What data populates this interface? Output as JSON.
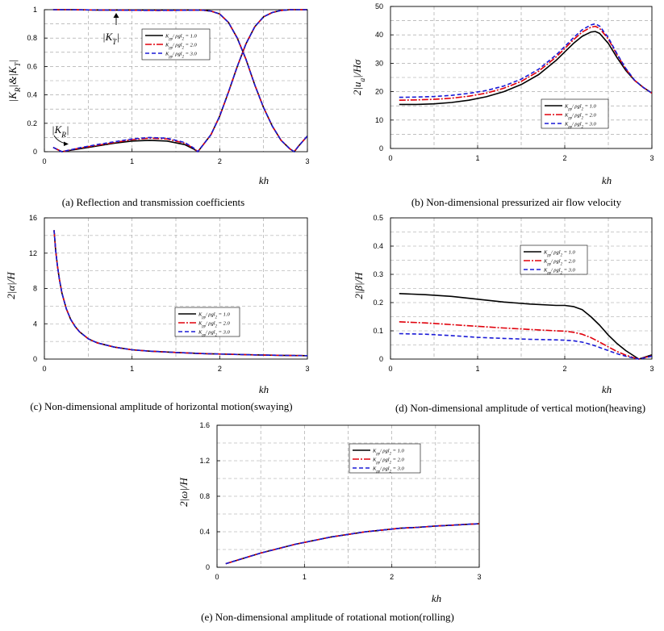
{
  "series_names": [
    "K_pp/ ρgl_2 = 1.0",
    "K_pp/ ρgl_2 = 2.0",
    "K_pp/ ρgl_2 = 3.0"
  ],
  "series_colors": [
    "#000000",
    "#e0000b",
    "#1a1ad6"
  ],
  "chart_data": [
    {
      "id": "a",
      "type": "line",
      "caption": "(a)  Reflection  and  transmission  coefficients",
      "xlabel": "kh",
      "ylabel": "|K_R|&|K_T|",
      "xlim": [
        0,
        3
      ],
      "ylim": [
        0,
        1
      ],
      "xticks": [
        0,
        1,
        2,
        3
      ],
      "yticks": [
        0,
        0.2,
        0.4,
        0.6,
        0.8,
        1
      ],
      "ytick_labels": [
        "0",
        "0.2",
        "0.4",
        "0.6",
        "0.8",
        "1"
      ],
      "annotations": [
        "|K_T|",
        "|K_R|"
      ],
      "legend_labels": [
        "K_pp/ ρgl_2 = 1.0",
        "K_pp/ ρgl_2 = 2.0",
        "K_pp/ ρgl_2 = 3.0"
      ],
      "series": [
        {
          "name": "K_R, K_pp/ρgl_2 = 1.0",
          "x": [
            0.1,
            0.2,
            0.4,
            0.6,
            0.8,
            1.0,
            1.2,
            1.4,
            1.6,
            1.7,
            1.75,
            1.8,
            1.9,
            2.0,
            2.1,
            2.2,
            2.3,
            2.4,
            2.5,
            2.6,
            2.7,
            2.8,
            2.9,
            3.0
          ],
          "y": [
            0.03,
            0.0,
            0.02,
            0.04,
            0.06,
            0.075,
            0.08,
            0.075,
            0.05,
            0.02,
            0.0,
            0.04,
            0.12,
            0.25,
            0.42,
            0.6,
            0.76,
            0.88,
            0.95,
            0.98,
            0.995,
            1.0,
            1.0,
            1.0
          ]
        },
        {
          "name": "K_R, K_pp/ρgl_2 = 2.0",
          "x": [
            0.1,
            0.2,
            0.4,
            0.6,
            0.8,
            1.0,
            1.2,
            1.4,
            1.6,
            1.7,
            1.75,
            1.8,
            1.9,
            2.0,
            2.1,
            2.2,
            2.3,
            2.4,
            2.5,
            2.6,
            2.7,
            2.8,
            2.9,
            3.0
          ],
          "y": [
            0.03,
            0.0,
            0.025,
            0.045,
            0.065,
            0.085,
            0.095,
            0.09,
            0.06,
            0.025,
            0.0,
            0.04,
            0.12,
            0.25,
            0.42,
            0.6,
            0.76,
            0.88,
            0.95,
            0.98,
            0.995,
            1.0,
            1.0,
            1.0
          ]
        },
        {
          "name": "K_R, K_pp/ρgl_2 = 3.0",
          "x": [
            0.1,
            0.2,
            0.4,
            0.6,
            0.8,
            1.0,
            1.2,
            1.4,
            1.6,
            1.7,
            1.75,
            1.8,
            1.9,
            2.0,
            2.1,
            2.2,
            2.3,
            2.4,
            2.5,
            2.6,
            2.7,
            2.8,
            2.9,
            3.0
          ],
          "y": [
            0.03,
            0.0,
            0.027,
            0.05,
            0.07,
            0.09,
            0.1,
            0.095,
            0.065,
            0.027,
            0.0,
            0.04,
            0.12,
            0.25,
            0.42,
            0.6,
            0.76,
            0.88,
            0.95,
            0.98,
            0.995,
            1.0,
            1.0,
            1.0
          ]
        },
        {
          "name": "K_T, K_pp/ρgl_2 = 1.0",
          "x": [
            0.1,
            0.3,
            0.6,
            1.0,
            1.3,
            1.6,
            1.8,
            1.9,
            2.0,
            2.1,
            2.2,
            2.3,
            2.4,
            2.5,
            2.6,
            2.7,
            2.8,
            2.85,
            2.9,
            3.0
          ],
          "y": [
            1.0,
            1.0,
            0.998,
            0.997,
            0.997,
            0.998,
            0.997,
            0.99,
            0.97,
            0.91,
            0.8,
            0.65,
            0.47,
            0.31,
            0.18,
            0.08,
            0.02,
            0.0,
            0.04,
            0.11
          ]
        },
        {
          "name": "K_T, K_pp/ρgl_2 = 2.0",
          "x": [
            0.1,
            0.3,
            0.6,
            1.0,
            1.3,
            1.6,
            1.8,
            1.9,
            2.0,
            2.1,
            2.2,
            2.3,
            2.4,
            2.5,
            2.6,
            2.7,
            2.8,
            2.85,
            2.9,
            3.0
          ],
          "y": [
            1.0,
            1.0,
            0.998,
            0.996,
            0.995,
            0.996,
            0.997,
            0.99,
            0.97,
            0.91,
            0.8,
            0.65,
            0.47,
            0.31,
            0.18,
            0.08,
            0.02,
            0.0,
            0.04,
            0.11
          ]
        },
        {
          "name": "K_T, K_pp/ρgl_2 = 3.0",
          "x": [
            0.1,
            0.3,
            0.6,
            1.0,
            1.3,
            1.6,
            1.8,
            1.9,
            2.0,
            2.1,
            2.2,
            2.3,
            2.4,
            2.5,
            2.6,
            2.7,
            2.8,
            2.85,
            2.9,
            3.0
          ],
          "y": [
            1.0,
            1.0,
            0.998,
            0.996,
            0.995,
            0.996,
            0.997,
            0.99,
            0.97,
            0.91,
            0.8,
            0.65,
            0.47,
            0.31,
            0.18,
            0.08,
            0.02,
            0.0,
            0.04,
            0.11
          ]
        }
      ]
    },
    {
      "id": "b",
      "type": "line",
      "caption": "(b)  Non-dimensional  pressurized  air  flow  velocity",
      "xlabel": "kh",
      "ylabel": "2|u_a|/Hσ",
      "xlim": [
        0,
        3
      ],
      "ylim": [
        0,
        50
      ],
      "xticks": [
        0,
        1,
        2,
        3
      ],
      "yticks": [
        0,
        10,
        20,
        30,
        40,
        50
      ],
      "ytick_labels": [
        "0",
        "10",
        "20",
        "30",
        "40",
        "50"
      ],
      "legend_labels": [
        "K_pp/ ρgl_2 = 1.0",
        "K_pp/ ρgl_2 = 2.0",
        "K_pp/ ρgl_2 = 3.0"
      ],
      "series": [
        {
          "name": "K_pp/ρgl_2 = 1.0",
          "x": [
            0.1,
            0.3,
            0.5,
            0.7,
            0.9,
            1.1,
            1.3,
            1.5,
            1.7,
            1.9,
            2.0,
            2.1,
            2.2,
            2.3,
            2.35,
            2.4,
            2.5,
            2.6,
            2.7,
            2.8,
            2.9,
            3.0
          ],
          "y": [
            15.5,
            15.5,
            15.7,
            16.2,
            17.0,
            18.2,
            20.0,
            22.5,
            26.0,
            31.0,
            34.0,
            37.0,
            39.5,
            41.0,
            41.2,
            40.5,
            37.0,
            32.0,
            27.5,
            24.0,
            21.5,
            19.5
          ]
        },
        {
          "name": "K_pp/ρgl_2 = 2.0",
          "x": [
            0.1,
            0.3,
            0.5,
            0.7,
            0.9,
            1.1,
            1.3,
            1.5,
            1.7,
            1.9,
            2.0,
            2.1,
            2.2,
            2.3,
            2.35,
            2.4,
            2.5,
            2.6,
            2.7,
            2.8,
            2.9,
            3.0
          ],
          "y": [
            17.0,
            17.1,
            17.3,
            17.7,
            18.4,
            19.5,
            21.2,
            23.6,
            27.2,
            32.2,
            35.2,
            38.3,
            41.0,
            42.7,
            43.0,
            42.3,
            38.5,
            33.0,
            28.0,
            24.0,
            21.5,
            19.5
          ]
        },
        {
          "name": "K_pp/ρgl_2 = 3.0",
          "x": [
            0.1,
            0.3,
            0.5,
            0.7,
            0.9,
            1.1,
            1.3,
            1.5,
            1.7,
            1.9,
            2.0,
            2.1,
            2.2,
            2.3,
            2.35,
            2.4,
            2.5,
            2.6,
            2.7,
            2.8,
            2.9,
            3.0
          ],
          "y": [
            18.0,
            18.1,
            18.3,
            18.7,
            19.4,
            20.4,
            22.0,
            24.4,
            27.9,
            32.9,
            35.9,
            39.0,
            41.8,
            43.5,
            43.9,
            43.1,
            39.0,
            33.3,
            28.2,
            24.1,
            21.5,
            19.5
          ]
        }
      ]
    },
    {
      "id": "c",
      "type": "line",
      "caption": "(c)  Non-dimensional  amplitude  of  horizontal  motion(swaying)",
      "xlabel": "kh",
      "ylabel": "2|α|/H",
      "xlim": [
        0,
        3
      ],
      "ylim": [
        0,
        16
      ],
      "xticks": [
        0,
        1,
        2,
        3
      ],
      "yticks": [
        0,
        4,
        8,
        12,
        16
      ],
      "ytick_labels": [
        "0",
        "4",
        "8",
        "12",
        "16"
      ],
      "legend_labels": [
        "K_pp/ ρgl_2 = 1.0",
        "K_pp/ ρgl_2 = 2.0",
        "K_pp/ ρgl_2 = 3.0"
      ],
      "series": [
        {
          "name": "K_pp/ρgl_2 = 1.0",
          "x": [
            0.11,
            0.13,
            0.15,
            0.17,
            0.2,
            0.25,
            0.3,
            0.35,
            0.4,
            0.5,
            0.6,
            0.8,
            1.0,
            1.2,
            1.5,
            1.8,
            2.1,
            2.4,
            2.7,
            3.0
          ],
          "y": [
            14.6,
            12.2,
            10.5,
            9.1,
            7.5,
            5.7,
            4.5,
            3.7,
            3.1,
            2.3,
            1.85,
            1.35,
            1.05,
            0.9,
            0.75,
            0.62,
            0.55,
            0.48,
            0.42,
            0.38
          ]
        },
        {
          "name": "K_pp/ρgl_2 = 2.0",
          "x": [
            0.11,
            0.13,
            0.15,
            0.17,
            0.2,
            0.25,
            0.3,
            0.35,
            0.4,
            0.5,
            0.6,
            0.8,
            1.0,
            1.2,
            1.5,
            1.8,
            2.1,
            2.4,
            2.7,
            3.0
          ],
          "y": [
            14.6,
            12.2,
            10.5,
            9.1,
            7.5,
            5.7,
            4.5,
            3.7,
            3.1,
            2.3,
            1.85,
            1.35,
            1.05,
            0.9,
            0.75,
            0.62,
            0.55,
            0.48,
            0.42,
            0.38
          ]
        },
        {
          "name": "K_pp/ρgl_2 = 3.0",
          "x": [
            0.11,
            0.13,
            0.15,
            0.17,
            0.2,
            0.25,
            0.3,
            0.35,
            0.4,
            0.5,
            0.6,
            0.8,
            1.0,
            1.2,
            1.5,
            1.8,
            2.1,
            2.4,
            2.7,
            3.0
          ],
          "y": [
            14.6,
            12.2,
            10.5,
            9.1,
            7.5,
            5.7,
            4.5,
            3.7,
            3.1,
            2.3,
            1.85,
            1.35,
            1.05,
            0.9,
            0.75,
            0.62,
            0.55,
            0.48,
            0.42,
            0.38
          ]
        }
      ]
    },
    {
      "id": "d",
      "type": "line",
      "caption": "(d)  Non-dimensional  amplitude  of  vertical  motion(heaving)",
      "xlabel": "kh",
      "ylabel": "2|β|/H",
      "xlim": [
        0,
        3
      ],
      "ylim": [
        0,
        0.5
      ],
      "xticks": [
        0,
        1,
        2,
        3
      ],
      "yticks": [
        0,
        0.1,
        0.2,
        0.3,
        0.4,
        0.5
      ],
      "ytick_labels": [
        "0",
        "0.1",
        "0.2",
        "0.3",
        "0.4",
        "0.5"
      ],
      "legend_labels": [
        "K_pp/ ρgl_2 = 1.0",
        "K_pp/ ρgl_2 = 2.0",
        "K_pp/ ρgl_2 = 3.0"
      ],
      "series": [
        {
          "name": "K_pp/ρgl_2 = 1.0",
          "x": [
            0.1,
            0.4,
            0.7,
            1.0,
            1.3,
            1.6,
            1.9,
            2.0,
            2.1,
            2.2,
            2.3,
            2.4,
            2.5,
            2.6,
            2.7,
            2.8,
            2.85,
            2.9,
            3.0
          ],
          "y": [
            0.232,
            0.228,
            0.222,
            0.212,
            0.202,
            0.195,
            0.19,
            0.19,
            0.186,
            0.175,
            0.15,
            0.12,
            0.085,
            0.055,
            0.03,
            0.01,
            0.0,
            0.005,
            0.015
          ]
        },
        {
          "name": "K_pp/ρgl_2 = 2.0",
          "x": [
            0.1,
            0.4,
            0.7,
            1.0,
            1.3,
            1.6,
            1.9,
            2.0,
            2.1,
            2.2,
            2.3,
            2.4,
            2.5,
            2.6,
            2.7,
            2.8,
            2.85,
            2.9,
            3.0
          ],
          "y": [
            0.132,
            0.128,
            0.122,
            0.116,
            0.11,
            0.105,
            0.1,
            0.099,
            0.095,
            0.088,
            0.076,
            0.06,
            0.043,
            0.027,
            0.014,
            0.004,
            0.0,
            0.004,
            0.012
          ]
        },
        {
          "name": "K_pp/ρgl_2 = 3.0",
          "x": [
            0.1,
            0.4,
            0.7,
            1.0,
            1.3,
            1.6,
            1.9,
            2.0,
            2.1,
            2.2,
            2.3,
            2.4,
            2.5,
            2.6,
            2.7,
            2.8,
            2.85,
            2.9,
            3.0
          ],
          "y": [
            0.09,
            0.088,
            0.083,
            0.077,
            0.073,
            0.07,
            0.068,
            0.067,
            0.065,
            0.06,
            0.052,
            0.041,
            0.03,
            0.019,
            0.01,
            0.003,
            0.0,
            0.003,
            0.01
          ]
        }
      ]
    },
    {
      "id": "e",
      "type": "line",
      "caption": "(e)  Non-dimensional  amplitude  of  rotational  motion(rolling)",
      "xlabel": "kh",
      "ylabel": "2|ω|/H",
      "xlim": [
        0,
        3
      ],
      "ylim": [
        0,
        1.6
      ],
      "xticks": [
        0,
        1,
        2,
        3
      ],
      "yticks": [
        0,
        0.4,
        0.8,
        1.2,
        1.6
      ],
      "ytick_labels": [
        "0",
        "0.4",
        "0.8",
        "1.2",
        "1.6"
      ],
      "legend_labels": [
        "K_pp/ ρgl_2 = 1.0",
        "K_pp/ ρgl_2 = 2.0",
        "K_pp/ ρgl_2 = 3.0"
      ],
      "series": [
        {
          "name": "K_pp/ρgl_2 = 1.0",
          "x": [
            0.1,
            0.3,
            0.5,
            0.7,
            0.9,
            1.1,
            1.3,
            1.5,
            1.7,
            1.9,
            2.1,
            2.3,
            2.5,
            2.7,
            2.9,
            3.0
          ],
          "y": [
            0.04,
            0.1,
            0.16,
            0.21,
            0.26,
            0.3,
            0.34,
            0.37,
            0.4,
            0.42,
            0.44,
            0.45,
            0.465,
            0.475,
            0.485,
            0.49
          ]
        },
        {
          "name": "K_pp/ρgl_2 = 2.0",
          "x": [
            0.1,
            0.3,
            0.5,
            0.7,
            0.9,
            1.1,
            1.3,
            1.5,
            1.7,
            1.9,
            2.1,
            2.3,
            2.5,
            2.7,
            2.9,
            3.0
          ],
          "y": [
            0.04,
            0.1,
            0.16,
            0.21,
            0.26,
            0.3,
            0.34,
            0.37,
            0.4,
            0.42,
            0.44,
            0.45,
            0.465,
            0.475,
            0.485,
            0.49
          ]
        },
        {
          "name": "K_pp/ρgl_2 = 3.0",
          "x": [
            0.1,
            0.3,
            0.5,
            0.7,
            0.9,
            1.1,
            1.3,
            1.5,
            1.7,
            1.9,
            2.1,
            2.3,
            2.5,
            2.7,
            2.9,
            3.0
          ],
          "y": [
            0.04,
            0.1,
            0.16,
            0.21,
            0.26,
            0.3,
            0.34,
            0.37,
            0.4,
            0.42,
            0.44,
            0.45,
            0.465,
            0.475,
            0.485,
            0.49
          ]
        }
      ]
    }
  ]
}
